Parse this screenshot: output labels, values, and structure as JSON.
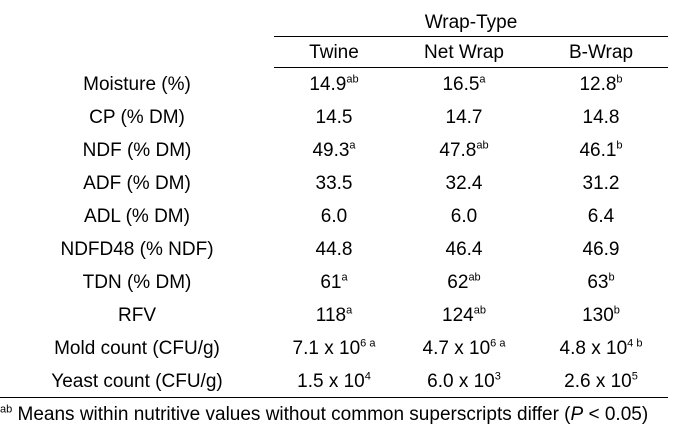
{
  "table": {
    "group_header": "Wrap-Type",
    "columns": [
      "Twine",
      "Net Wrap",
      "B-Wrap"
    ],
    "rows": [
      {
        "label": "Moisture (%)",
        "cells": [
          {
            "v": "14.9",
            "s": "ab"
          },
          {
            "v": "16.5",
            "s": "a"
          },
          {
            "v": "12.8",
            "s": "b"
          }
        ]
      },
      {
        "label": "CP (% DM)",
        "cells": [
          {
            "v": "14.5",
            "s": ""
          },
          {
            "v": "14.7",
            "s": ""
          },
          {
            "v": "14.8",
            "s": ""
          }
        ]
      },
      {
        "label": "NDF (% DM)",
        "cells": [
          {
            "v": "49.3",
            "s": "a"
          },
          {
            "v": "47.8",
            "s": "ab"
          },
          {
            "v": "46.1",
            "s": "b"
          }
        ]
      },
      {
        "label": "ADF (% DM)",
        "cells": [
          {
            "v": "33.5",
            "s": ""
          },
          {
            "v": "32.4",
            "s": ""
          },
          {
            "v": "31.2",
            "s": ""
          }
        ]
      },
      {
        "label": "ADL (% DM)",
        "cells": [
          {
            "v": "6.0",
            "s": ""
          },
          {
            "v": "6.0",
            "s": ""
          },
          {
            "v": "6.4",
            "s": ""
          }
        ]
      },
      {
        "label": "NDFD48 (% NDF)",
        "cells": [
          {
            "v": "44.8",
            "s": ""
          },
          {
            "v": "46.4",
            "s": ""
          },
          {
            "v": "46.9",
            "s": ""
          }
        ]
      },
      {
        "label": "TDN (% DM)",
        "cells": [
          {
            "v": "61",
            "s": "a"
          },
          {
            "v": "62",
            "s": "ab"
          },
          {
            "v": "63",
            "s": "b"
          }
        ]
      },
      {
        "label": "RFV",
        "cells": [
          {
            "v": "118",
            "s": "a"
          },
          {
            "v": "124",
            "s": "ab"
          },
          {
            "v": "130",
            "s": "b"
          }
        ]
      },
      {
        "label": "Mold count (CFU/g)",
        "cells": [
          {
            "v": "7.1 x 10",
            "s": "6 a"
          },
          {
            "v": "4.7 x 10",
            "s": "6 a"
          },
          {
            "v": "4.8 x 10",
            "s": "4 b"
          }
        ]
      },
      {
        "label": "Yeast count (CFU/g)",
        "cells": [
          {
            "v": "1.5 x 10",
            "s": "4"
          },
          {
            "v": "6.0 x 10",
            "s": "3"
          },
          {
            "v": "2.6 x 10",
            "s": "5"
          }
        ]
      }
    ]
  },
  "footnote": {
    "superscript": "ab",
    "text_before": " Means within nutritive values without common superscripts differ (",
    "p_symbol": "P",
    "text_after": " < 0.05)"
  }
}
